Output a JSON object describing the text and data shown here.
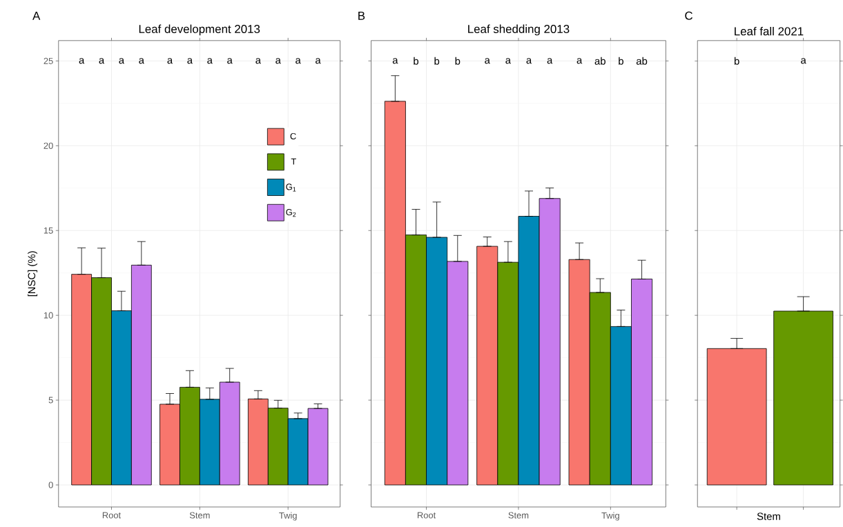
{
  "chart_data": [
    {
      "type": "bar",
      "title": "Leaf development 2013",
      "ylabel": "[NSC] (%)",
      "categories": [
        "Root",
        "Stem",
        "Twig"
      ],
      "series": [
        {
          "name": "C",
          "color": "#f8766d",
          "values": [
            12.42,
            4.76,
            5.07
          ],
          "errors": [
            [
              12.42,
              13.98
            ],
            [
              4.76,
              5.39
            ],
            [
              5.07,
              5.56
            ]
          ]
        },
        {
          "name": "T",
          "color": "#669900",
          "values": [
            12.22,
            5.76,
            4.53
          ],
          "errors": [
            [
              12.22,
              13.96
            ],
            [
              5.76,
              6.74
            ],
            [
              4.53,
              4.99
            ]
          ]
        },
        {
          "name": "G$_{1}$",
          "color": "#0089b8",
          "values": [
            10.27,
            5.05,
            3.91
          ],
          "errors": [
            [
              10.27,
              11.42
            ],
            [
              5.05,
              5.72
            ],
            [
              3.91,
              4.24
            ]
          ]
        },
        {
          "name": "G$_{2}$",
          "color": "#c77cee",
          "values": [
            12.96,
            6.06,
            4.51
          ],
          "errors": [
            [
              12.96,
              14.35
            ],
            [
              6.06,
              6.87
            ],
            [
              4.51,
              4.78
            ]
          ]
        }
      ],
      "ylim": [
        -1.3,
        26.2
      ],
      "yticks": [
        0,
        5,
        10,
        15,
        20,
        25
      ],
      "grid": true,
      "legend": "top right",
      "annotations": [
        "A",
        "a",
        "a",
        "a",
        "a",
        "a",
        "a",
        "a",
        "a",
        "a",
        "a",
        "a",
        "a"
      ]
    },
    {
      "type": "bar",
      "title": "Leaf shedding 2013",
      "categories": [
        "Root",
        "Stem",
        "Twig"
      ],
      "series": [
        {
          "color": "#f8766d",
          "values": [
            22.62,
            14.07,
            13.29
          ],
          "errors": [
            [
              22.62,
              24.13
            ],
            [
              14.07,
              14.62
            ],
            [
              13.29,
              14.27
            ]
          ]
        },
        {
          "color": "#669900",
          "values": [
            14.74,
            13.13,
            11.35
          ],
          "errors": [
            [
              14.74,
              16.25
            ],
            [
              13.13,
              14.35
            ],
            [
              11.35,
              12.16
            ]
          ]
        },
        {
          "color": "#0089b8",
          "values": [
            14.6,
            15.84,
            9.34
          ],
          "errors": [
            [
              14.6,
              16.68
            ],
            [
              15.84,
              17.33
            ],
            [
              9.34,
              10.31
            ]
          ]
        },
        {
          "color": "#c77cee",
          "values": [
            13.18,
            16.89,
            12.14
          ],
          "errors": [
            [
              13.18,
              14.71
            ],
            [
              16.89,
              17.51
            ],
            [
              12.14,
              13.25
            ]
          ]
        }
      ],
      "ylim": [
        -1.3,
        26.2
      ],
      "yticks": [
        0,
        5,
        10,
        15,
        20,
        25
      ],
      "grid": true,
      "tick_labels": "x",
      "annotations": [
        "B",
        "a",
        "b",
        "b",
        "b",
        "a",
        "a",
        "a",
        "a",
        "a",
        "ab",
        "b",
        "ab"
      ]
    },
    {
      "type": "bar",
      "title": "Leaf fall 2021",
      "xlabel": "Stem",
      "categories": [
        null,
        null
      ],
      "values": [
        8.04,
        10.25
      ],
      "colors": [
        "#f8766d",
        "#669900"
      ],
      "errors": [
        [
          8.04,
          8.64
        ],
        [
          10.25,
          11.1
        ]
      ],
      "ylim": [
        -1.3,
        26.2
      ],
      "yticks": [
        0,
        5,
        10,
        15,
        20,
        25
      ],
      "grid": true,
      "tick_labels": false,
      "annotations": [
        "C",
        "b",
        "a"
      ]
    }
  ]
}
